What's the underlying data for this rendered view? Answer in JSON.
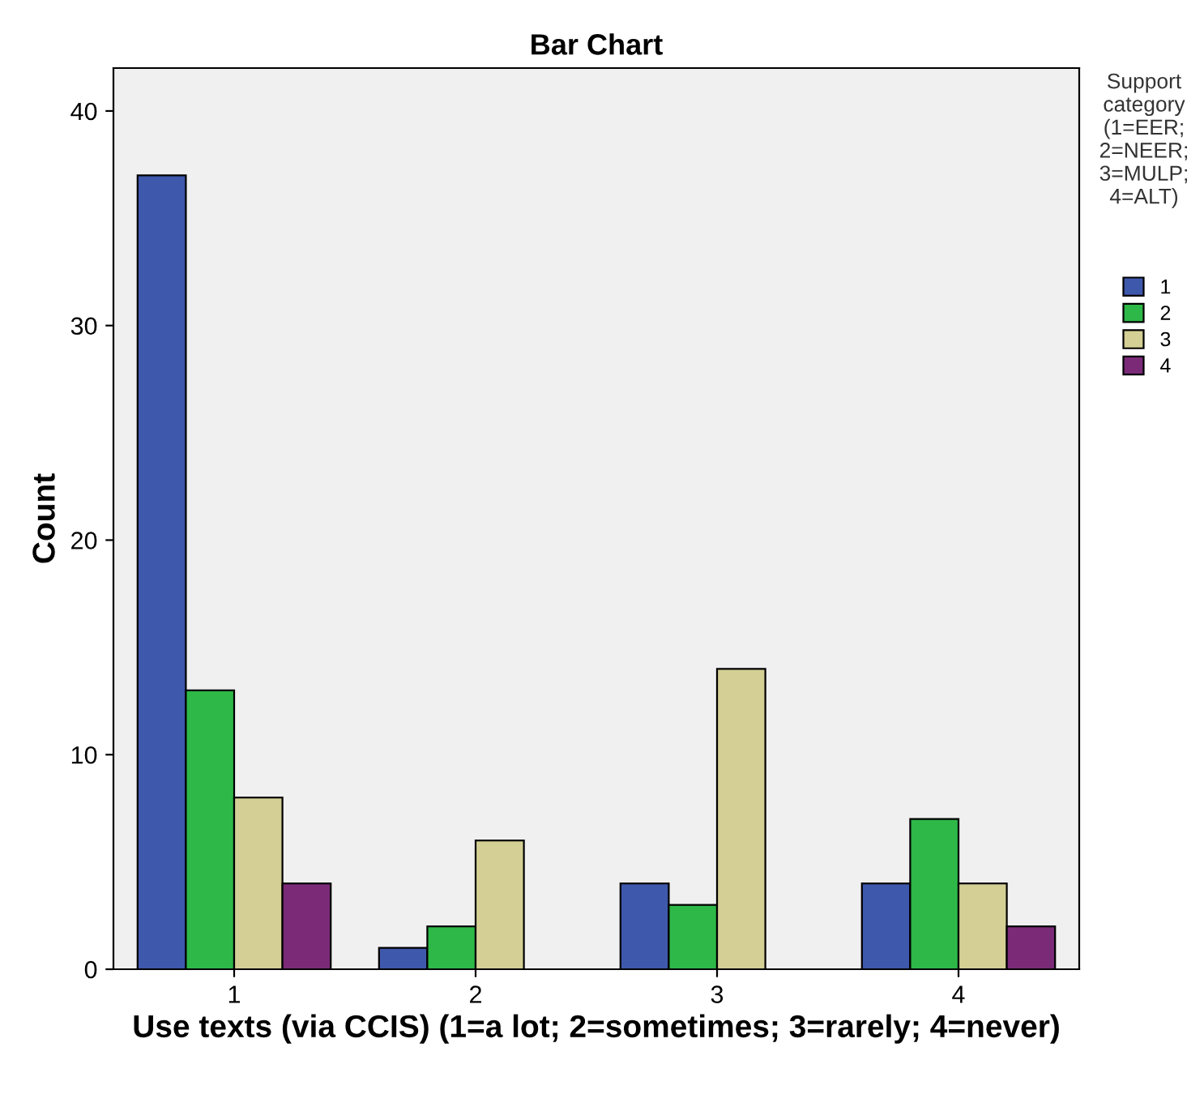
{
  "chart_data": {
    "type": "bar",
    "title": "Bar Chart",
    "xlabel": "Use texts (via CCIS) (1=a lot; 2=sometimes; 3=rarely; 4=never)",
    "ylabel": "Count",
    "legend_title": "Support category (1=EER; 2=NEER; 3=MULP; 4=ALT)",
    "categories": [
      "1",
      "2",
      "3",
      "4"
    ],
    "series": [
      {
        "name": "1",
        "color": "#3e58ac",
        "values": [
          37,
          1,
          4,
          4
        ]
      },
      {
        "name": "2",
        "color": "#2eb848",
        "values": [
          13,
          2,
          3,
          7
        ]
      },
      {
        "name": "3",
        "color": "#d4cf94",
        "values": [
          8,
          6,
          14,
          4
        ]
      },
      {
        "name": "4",
        "color": "#7b2a78",
        "values": [
          4,
          null,
          null,
          2
        ]
      }
    ],
    "ylim": [
      0,
      42
    ],
    "yticks": [
      0,
      10,
      20,
      30,
      40
    ],
    "grid": false,
    "legend": "right"
  }
}
